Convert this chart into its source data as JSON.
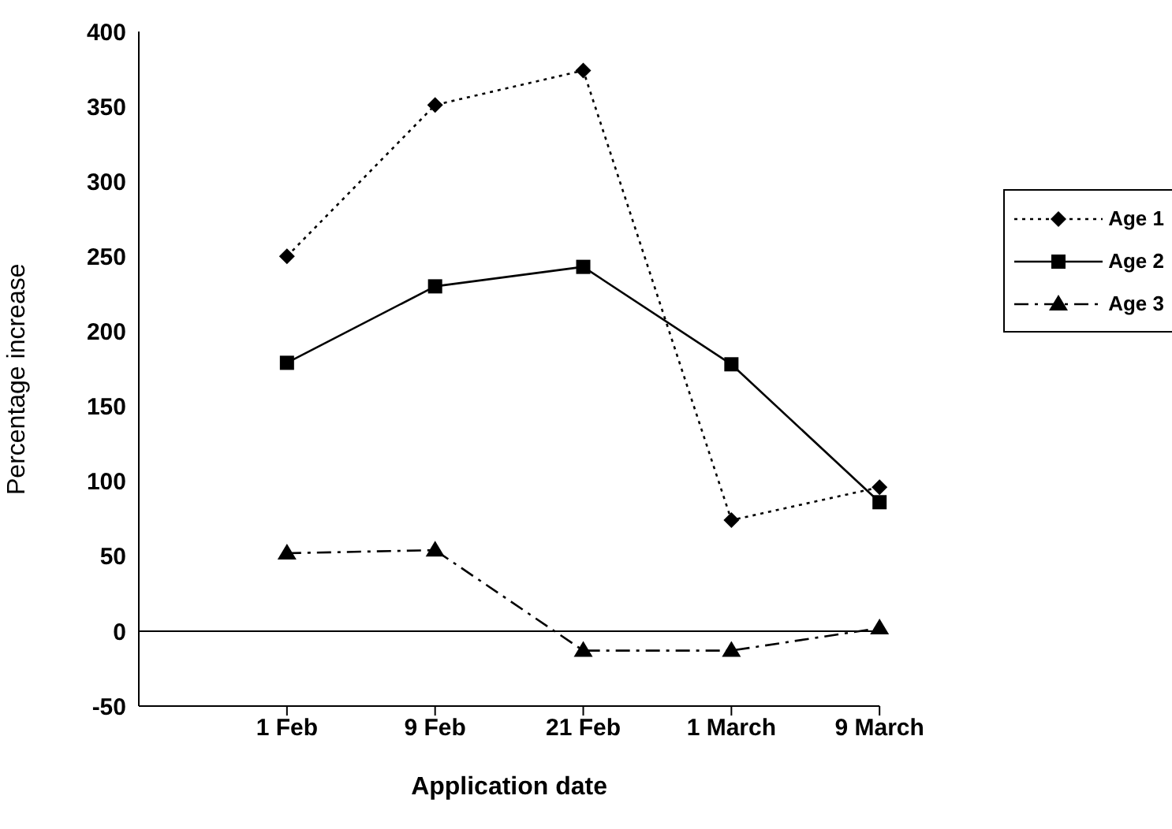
{
  "chart_data": {
    "type": "line",
    "xlabel": "Application date",
    "ylabel": "Percentage increase",
    "categories": [
      "1 Feb",
      "9 Feb",
      "21 Feb",
      "1 March",
      "9 March"
    ],
    "series": [
      {
        "name": "Age 1",
        "color": "#000000",
        "marker": "diamond",
        "line_style": "dotted",
        "values": [
          250,
          351,
          374,
          74,
          96
        ]
      },
      {
        "name": "Age 2",
        "color": "#000000",
        "marker": "square",
        "line_style": "solid",
        "values": [
          179,
          230,
          243,
          178,
          86
        ]
      },
      {
        "name": "Age 3",
        "color": "#000000",
        "marker": "triangle",
        "line_style": "dashdot",
        "values": [
          52,
          54,
          -13,
          -13,
          2
        ]
      }
    ],
    "ylim": [
      -50,
      400
    ],
    "yticks": [
      -50,
      0,
      50,
      100,
      150,
      200,
      250,
      300,
      350,
      400
    ],
    "ref_lines": [
      {
        "axis": "y",
        "value": 0,
        "color": "#000000",
        "line_style": "solid"
      }
    ],
    "grid": false,
    "legend": "right"
  }
}
